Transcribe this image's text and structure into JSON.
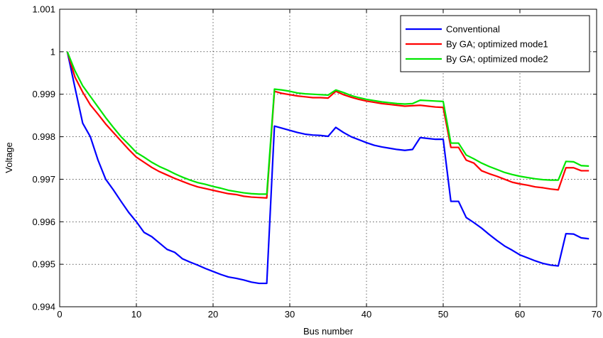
{
  "chart_data": {
    "type": "line",
    "title": "",
    "xlabel": "Bus number",
    "ylabel": "Voltage",
    "xlim": [
      0,
      70
    ],
    "ylim": [
      0.994,
      1.001
    ],
    "xticks": [
      0,
      10,
      20,
      30,
      40,
      50,
      60,
      70
    ],
    "yticks": [
      0.994,
      0.995,
      0.996,
      0.997,
      0.998,
      0.999,
      1,
      1.001
    ],
    "xtick_labels": [
      "0",
      "10",
      "20",
      "30",
      "40",
      "50",
      "60",
      "70"
    ],
    "ytick_labels": [
      "0.994",
      "0.995",
      "0.996",
      "0.997",
      "0.998",
      "0.999",
      "1",
      "1.001"
    ],
    "grid": true,
    "legend_position": "top-right",
    "x": [
      1,
      2,
      3,
      4,
      5,
      6,
      7,
      8,
      9,
      10,
      11,
      12,
      13,
      14,
      15,
      16,
      17,
      18,
      19,
      20,
      21,
      22,
      23,
      24,
      25,
      26,
      27,
      28,
      29,
      30,
      31,
      32,
      33,
      34,
      35,
      36,
      37,
      38,
      39,
      40,
      41,
      42,
      43,
      44,
      45,
      46,
      47,
      48,
      49,
      50,
      51,
      52,
      53,
      54,
      55,
      56,
      57,
      58,
      59,
      60,
      61,
      62,
      63,
      64,
      65,
      66,
      67,
      68,
      69
    ],
    "series": [
      {
        "name": "Conventional",
        "color": "#0000ff",
        "values": [
          1.0,
          0.99915,
          0.99832,
          0.998,
          0.99745,
          0.997,
          0.99675,
          0.99648,
          0.99622,
          0.996,
          0.99575,
          0.99565,
          0.9955,
          0.99535,
          0.99528,
          0.99513,
          0.99505,
          0.99498,
          0.9949,
          0.99483,
          0.99476,
          0.9947,
          0.99467,
          0.99463,
          0.99458,
          0.99455,
          0.99455,
          0.99825,
          0.9982,
          0.99815,
          0.9981,
          0.99806,
          0.99804,
          0.99803,
          0.99801,
          0.99822,
          0.9981,
          0.998,
          0.99793,
          0.99786,
          0.9978,
          0.99776,
          0.99773,
          0.9977,
          0.99768,
          0.9977,
          0.99798,
          0.99796,
          0.99794,
          0.99794,
          0.99648,
          0.99648,
          0.9961,
          0.99598,
          0.99585,
          0.9957,
          0.99556,
          0.99543,
          0.99533,
          0.99522,
          0.99515,
          0.99508,
          0.99502,
          0.99498,
          0.99496,
          0.99572,
          0.99571,
          0.99562,
          0.9956
        ]
      },
      {
        "name": "By GA; optimized mode1",
        "color": "#ff0000",
        "values": [
          1.0,
          0.9994,
          0.99905,
          0.99875,
          0.99853,
          0.9983,
          0.9981,
          0.9979,
          0.9977,
          0.99752,
          0.9974,
          0.99728,
          0.99718,
          0.9971,
          0.99702,
          0.99695,
          0.99688,
          0.99682,
          0.99678,
          0.99674,
          0.9967,
          0.99666,
          0.99664,
          0.9966,
          0.99658,
          0.99657,
          0.99656,
          0.99907,
          0.99902,
          0.99899,
          0.99896,
          0.99894,
          0.99892,
          0.99892,
          0.99891,
          0.99907,
          0.99899,
          0.99893,
          0.99888,
          0.99884,
          0.99881,
          0.99878,
          0.99876,
          0.99874,
          0.99872,
          0.99873,
          0.99874,
          0.99872,
          0.9987,
          0.99869,
          0.99775,
          0.99775,
          0.99745,
          0.99738,
          0.9972,
          0.99713,
          0.99707,
          0.997,
          0.99693,
          0.99689,
          0.99686,
          0.99682,
          0.9968,
          0.99677,
          0.99675,
          0.99727,
          0.99727,
          0.9972,
          0.9972
        ]
      },
      {
        "name": "By GA; optimized mode2",
        "color": "#00e600",
        "values": [
          1.0,
          0.99955,
          0.9992,
          0.99895,
          0.9987,
          0.99845,
          0.99822,
          0.998,
          0.99782,
          0.99763,
          0.99752,
          0.9974,
          0.9973,
          0.99722,
          0.99713,
          0.99705,
          0.99698,
          0.99692,
          0.99688,
          0.99683,
          0.99679,
          0.99674,
          0.99671,
          0.99668,
          0.99666,
          0.99665,
          0.99665,
          0.99912,
          0.9991,
          0.99907,
          0.99903,
          0.99901,
          0.999,
          0.99899,
          0.99898,
          0.9991,
          0.99904,
          0.99897,
          0.99892,
          0.99888,
          0.99885,
          0.99882,
          0.9988,
          0.99878,
          0.99877,
          0.99878,
          0.99886,
          0.99885,
          0.99884,
          0.99883,
          0.99785,
          0.99785,
          0.99757,
          0.99748,
          0.99738,
          0.9973,
          0.99723,
          0.99716,
          0.99711,
          0.99707,
          0.99704,
          0.99701,
          0.99699,
          0.99698,
          0.99698,
          0.99742,
          0.99741,
          0.99732,
          0.99731
        ]
      }
    ]
  }
}
